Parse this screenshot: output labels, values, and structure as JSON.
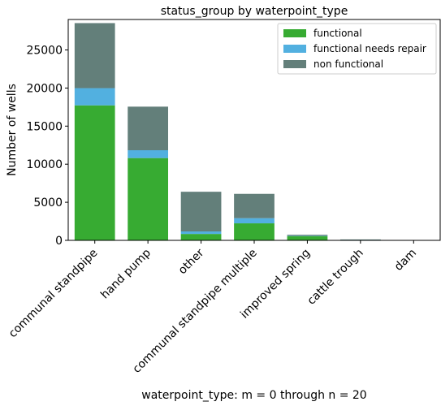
{
  "chart_data": {
    "type": "bar",
    "stacked": true,
    "title": "status_group by waterpoint_type",
    "xlabel": "waterpoint_type: m = 0 through n = 20",
    "ylabel": "Number of wells",
    "categories": [
      "communal standpipe",
      "hand pump",
      "other",
      "communal standpipe multiple",
      "improved spring",
      "cattle trough",
      "dam"
    ],
    "series": [
      {
        "name": "functional",
        "color": "#37ab32",
        "values": [
          17726,
          10805,
          840,
          2235,
          563,
          84,
          6
        ]
      },
      {
        "name": "functional needs repair",
        "color": "#52b0e0",
        "values": [
          2260,
          1028,
          334,
          677,
          43,
          11,
          0
        ]
      },
      {
        "name": "non functional",
        "color": "#637f7a",
        "values": [
          8540,
          5723,
          5207,
          3193,
          131,
          21,
          1
        ]
      }
    ],
    "ylim": [
      0,
      29000
    ],
    "yticks": [
      0,
      5000,
      10000,
      15000,
      20000,
      25000
    ],
    "grid": false,
    "legend_position": "top-right"
  }
}
